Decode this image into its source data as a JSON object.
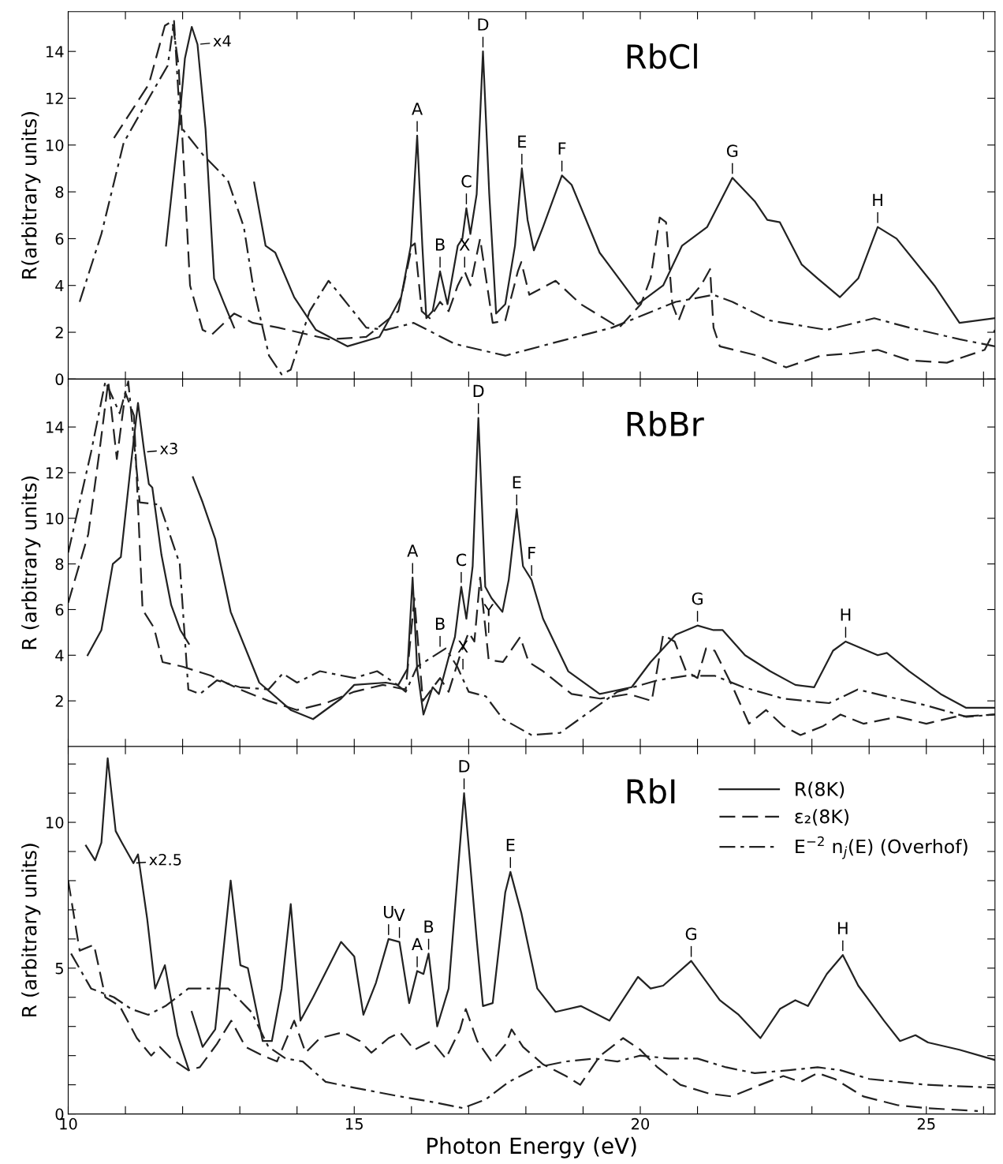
{
  "chart_data": [
    {
      "type": "line",
      "title": "RbCl",
      "ylabel": "R(arbitrary units)",
      "xlim": [
        10,
        26.2
      ],
      "ylim": [
        0,
        15.7
      ],
      "tick_labels": "y",
      "xticks": [
        {
          "value": 10,
          "label": null
        },
        {
          "value": 11,
          "label": null
        },
        {
          "value": 12,
          "label": null
        },
        {
          "value": 13,
          "label": null
        },
        {
          "value": 14,
          "label": null
        },
        {
          "value": 15,
          "label": null
        },
        {
          "value": 16,
          "label": null
        },
        {
          "value": 17,
          "label": null
        },
        {
          "value": 18,
          "label": null
        },
        {
          "value": 19,
          "label": null
        },
        {
          "value": 20,
          "label": null
        },
        {
          "value": 21,
          "label": null
        },
        {
          "value": 22,
          "label": null
        },
        {
          "value": 23,
          "label": null
        },
        {
          "value": 24,
          "label": null
        },
        {
          "value": 25,
          "label": null
        },
        {
          "value": 26,
          "label": null
        }
      ],
      "yticks": [
        0,
        2,
        4,
        6,
        8,
        10,
        12,
        14
      ],
      "series": [
        {
          "color": "#222222",
          "line_style": "solid",
          "x": [
            11.71,
            11.93,
            12.04,
            12.16,
            12.26,
            12.4,
            12.55,
            12.73,
            12.9,
            13.1,
            13.25,
            13.45,
            13.62,
            13.95,
            14.33,
            14.88,
            15.44,
            15.82,
            15.99,
            16.1,
            16.19,
            16.26,
            16.37,
            16.5,
            16.63,
            16.81,
            16.89,
            16.96,
            17.03,
            17.14,
            17.25,
            17.36,
            17.48,
            17.64,
            17.81,
            17.93,
            18.03,
            18.14,
            18.3,
            18.63,
            18.8,
            19.29,
            19.96,
            20.4,
            20.73,
            21.17,
            21.61,
            22.0,
            22.22,
            22.44,
            22.82,
            23.1,
            23.49,
            23.81,
            24.15,
            24.48,
            25.14,
            25.58,
            26.2
          ],
          "values": [
            5.7,
            10.7,
            13.7,
            15.05,
            14.3,
            10.7,
            4.3,
            3.2,
            2.2,
            null,
            8.4,
            5.7,
            5.4,
            3.5,
            2.1,
            1.4,
            1.8,
            3.5,
            5.7,
            10.4,
            5.7,
            2.6,
            2.9,
            4.6,
            3.2,
            5.7,
            6.0,
            7.3,
            6.2,
            7.9,
            14.0,
            7.9,
            2.8,
            3.2,
            5.7,
            9.0,
            6.8,
            5.5,
            6.5,
            8.7,
            8.3,
            5.4,
            3.2,
            4.0,
            5.7,
            6.5,
            8.6,
            7.6,
            6.8,
            6.7,
            4.9,
            4.3,
            3.5,
            4.3,
            6.5,
            6.0,
            4.0,
            2.4,
            2.6
          ]
        },
        {
          "color": "#222222",
          "line_style": "dashed",
          "x": [
            10.8,
            11.41,
            11.69,
            11.82,
            11.93,
            12.13,
            12.35,
            12.51,
            12.9,
            13.23,
            13.67,
            14.55,
            15.21,
            15.77,
            16.01,
            16.06,
            16.18,
            16.32,
            16.5,
            16.65,
            16.81,
            16.93,
            17.03,
            17.2,
            17.42,
            17.64,
            17.86,
            17.92,
            18.06,
            18.52,
            18.96,
            19.63,
            20.01,
            20.18,
            20.34,
            20.45,
            20.56,
            20.67,
            20.78,
            21.06,
            21.22,
            21.28,
            21.39,
            22.05,
            22.55,
            23.15,
            23.7,
            24.15,
            24.7,
            25.36,
            26.02,
            26.2
          ],
          "values": [
            10.3,
            12.6,
            15.1,
            15.3,
            13.4,
            4.0,
            2.1,
            1.9,
            2.8,
            2.4,
            2.2,
            1.7,
            1.8,
            2.9,
            5.7,
            5.8,
            2.9,
            2.6,
            3.3,
            2.9,
            4.0,
            4.6,
            4.0,
            6.0,
            2.4,
            2.5,
            4.6,
            5.0,
            3.6,
            4.2,
            3.2,
            2.2,
            3.2,
            4.3,
            6.9,
            6.7,
            3.2,
            2.5,
            3.2,
            4.0,
            4.7,
            2.2,
            1.4,
            1.0,
            0.5,
            1.0,
            1.1,
            1.25,
            0.8,
            0.7,
            1.25,
            2.1
          ]
        },
        {
          "color": "#222222",
          "line_style": "dashdot",
          "x": [
            10.2,
            10.58,
            10.97,
            11.41,
            11.74,
            11.85,
            11.96,
            12.35,
            12.79,
            13.07,
            13.23,
            13.51,
            13.73,
            13.89,
            14.22,
            14.55,
            14.72,
            15.21,
            15.55,
            16.04,
            16.76,
            17.64,
            18.41,
            19.51,
            20.62,
            21.28,
            21.61,
            22.27,
            23.26,
            24.09,
            24.7,
            25.58,
            26.2
          ],
          "values": [
            3.3,
            6.2,
            10.1,
            12.0,
            13.4,
            15.3,
            10.8,
            9.6,
            8.5,
            6.5,
            4.0,
            1.0,
            0.2,
            0.4,
            2.9,
            4.2,
            3.7,
            2.2,
            2.1,
            2.4,
            1.5,
            1.0,
            1.5,
            2.2,
            3.3,
            3.6,
            3.3,
            2.5,
            2.1,
            2.6,
            2.2,
            1.7,
            1.4
          ]
        }
      ],
      "annotations": [
        {
          "text": "x4",
          "x": 12.26,
          "y": 14.3
        },
        {
          "text": "A",
          "x": 16.1,
          "y": 10.4
        },
        {
          "text": "B",
          "x": 16.5,
          "y": 4.6
        },
        {
          "text": "X",
          "x": 16.93,
          "y": 4.6
        },
        {
          "text": "C",
          "x": 16.96,
          "y": 7.3
        },
        {
          "text": "D",
          "x": 17.25,
          "y": 14.0
        },
        {
          "text": "E",
          "x": 17.93,
          "y": 9.0
        },
        {
          "text": "F",
          "x": 18.63,
          "y": 8.7
        },
        {
          "text": "G",
          "x": 21.61,
          "y": 8.6
        },
        {
          "text": "H",
          "x": 24.15,
          "y": 6.5
        }
      ]
    },
    {
      "type": "line",
      "title": "RbBr",
      "ylabel": "R (arbitrary units)",
      "xlim": [
        10,
        26.2
      ],
      "ylim": [
        0,
        16.1
      ],
      "tick_labels": "y",
      "xticks": [
        {
          "value": 10,
          "label": null
        },
        {
          "value": 11,
          "label": null
        },
        {
          "value": 12,
          "label": null
        },
        {
          "value": 13,
          "label": null
        },
        {
          "value": 14,
          "label": null
        },
        {
          "value": 15,
          "label": null
        },
        {
          "value": 16,
          "label": null
        },
        {
          "value": 17,
          "label": null
        },
        {
          "value": 18,
          "label": null
        },
        {
          "value": 19,
          "label": null
        },
        {
          "value": 20,
          "label": null
        },
        {
          "value": 21,
          "label": null
        },
        {
          "value": 22,
          "label": null
        },
        {
          "value": 23,
          "label": null
        },
        {
          "value": 24,
          "label": null
        },
        {
          "value": 25,
          "label": null
        },
        {
          "value": 26,
          "label": null
        }
      ],
      "yticks": [
        2,
        4,
        6,
        8,
        10,
        12,
        14
      ],
      "series": [
        {
          "color": "#222222",
          "line_style": "solid",
          "x": [
            10.34,
            10.58,
            10.78,
            10.92,
            11.08,
            11.22,
            11.33,
            11.41,
            11.47,
            11.63,
            11.8,
            11.96,
            12.11,
            12.15,
            12.18,
            12.35,
            12.57,
            12.84,
            13.34,
            13.89,
            14.28,
            14.77,
            15.0,
            15.55,
            15.77,
            15.93,
            16.02,
            16.1,
            16.21,
            16.37,
            16.48,
            16.65,
            16.76,
            16.87,
            16.96,
            17.07,
            17.17,
            17.29,
            17.4,
            17.59,
            17.7,
            17.84,
            17.95,
            18.1,
            18.3,
            18.74,
            19.29,
            19.85,
            20.18,
            20.62,
            21.0,
            21.28,
            21.44,
            21.83,
            22.27,
            22.71,
            23.04,
            23.37,
            23.59,
            24.15,
            24.31,
            24.7,
            25.25,
            25.69,
            26.2
          ],
          "values": [
            4.0,
            5.1,
            8.0,
            8.3,
            12.0,
            15.05,
            12.9,
            11.5,
            11.35,
            8.4,
            6.2,
            5.1,
            4.5,
            null,
            11.8,
            10.7,
            9.1,
            5.9,
            2.8,
            1.6,
            1.2,
            2.1,
            2.7,
            2.8,
            2.7,
            3.4,
            7.4,
            3.4,
            1.4,
            2.6,
            2.3,
            3.9,
            4.8,
            7.0,
            5.6,
            7.9,
            14.4,
            7.0,
            6.5,
            5.9,
            7.3,
            10.4,
            7.9,
            7.3,
            5.6,
            3.3,
            2.3,
            2.6,
            3.7,
            4.9,
            5.3,
            5.1,
            5.1,
            4.0,
            3.3,
            2.7,
            2.6,
            4.2,
            4.6,
            4.0,
            4.1,
            3.3,
            2.3,
            1.7,
            1.7
          ]
        },
        {
          "color": "#222222",
          "line_style": "dashed",
          "x": [
            10.0,
            10.35,
            10.55,
            10.7,
            10.85,
            11.0,
            11.15,
            11.3,
            11.5,
            11.65,
            12.0,
            12.5,
            13.0,
            13.5,
            14.0,
            14.5,
            15.0,
            15.5,
            15.9,
            16.05,
            16.2,
            16.5,
            16.65,
            16.85,
            17.0,
            17.1,
            17.2,
            17.35,
            17.6,
            17.9,
            18.05,
            18.3,
            18.8,
            19.3,
            19.8,
            20.2,
            20.4,
            20.6,
            20.8,
            21.0,
            21.15,
            21.3,
            21.6,
            21.9,
            22.2,
            22.5,
            22.8,
            23.2,
            23.5,
            23.9,
            24.5,
            25.0,
            25.5,
            26.2
          ],
          "values": [
            6.3,
            9.3,
            13.0,
            16.0,
            12.6,
            15.5,
            14.5,
            6.0,
            5.2,
            3.7,
            3.5,
            3.1,
            2.5,
            2.0,
            1.6,
            1.9,
            2.4,
            2.7,
            2.5,
            6.5,
            2.0,
            3.0,
            2.4,
            4.0,
            5.0,
            4.6,
            7.4,
            3.8,
            3.7,
            4.8,
            3.7,
            3.3,
            2.3,
            2.1,
            2.3,
            2.0,
            4.9,
            4.6,
            3.3,
            3.0,
            4.3,
            4.2,
            2.7,
            1.0,
            1.6,
            0.9,
            0.5,
            0.9,
            1.4,
            1.0,
            1.3,
            1.0,
            1.3,
            1.4
          ]
        },
        {
          "color": "#222222",
          "line_style": "dashdot",
          "x": [
            10.0,
            10.4,
            10.65,
            10.9,
            11.05,
            11.25,
            11.6,
            11.95,
            12.1,
            12.3,
            12.6,
            13.0,
            13.5,
            13.75,
            14.0,
            14.4,
            15.0,
            15.4,
            15.7,
            15.9,
            16.1,
            16.6,
            16.8,
            17.0,
            17.3,
            17.6,
            18.1,
            18.6,
            19.1,
            19.6,
            20.3,
            20.8,
            21.3,
            21.8,
            22.5,
            23.3,
            23.8,
            24.3,
            25.0,
            25.7,
            26.2
          ],
          "values": [
            8.5,
            12.9,
            16.0,
            14.6,
            16.0,
            10.7,
            10.6,
            8.0,
            2.5,
            2.3,
            2.9,
            2.6,
            2.5,
            3.2,
            2.8,
            3.3,
            3.0,
            3.3,
            2.8,
            2.4,
            3.5,
            4.3,
            3.5,
            2.4,
            2.2,
            1.2,
            0.5,
            0.6,
            1.5,
            2.4,
            2.9,
            3.1,
            3.1,
            2.6,
            2.1,
            1.9,
            2.5,
            2.2,
            1.8,
            1.3,
            1.4
          ]
        }
      ],
      "annotations": [
        {
          "text": "x3",
          "x": 11.33,
          "y": 12.9
        },
        {
          "text": "A",
          "x": 16.02,
          "y": 7.4
        },
        {
          "text": "B",
          "x": 16.5,
          "y": 4.2
        },
        {
          "text": "X",
          "x": 16.9,
          "y": 3.2
        },
        {
          "text": "C",
          "x": 16.87,
          "y": 7.0
        },
        {
          "text": "Y",
          "x": 17.35,
          "y": 4.8
        },
        {
          "text": "D",
          "x": 17.17,
          "y": 14.4
        },
        {
          "text": "E",
          "x": 17.84,
          "y": 10.4
        },
        {
          "text": "F",
          "x": 18.1,
          "y": 7.3
        },
        {
          "text": "G",
          "x": 21.0,
          "y": 5.3
        },
        {
          "text": "H",
          "x": 23.59,
          "y": 4.6
        }
      ]
    },
    {
      "type": "line",
      "title": "RbI",
      "xlabel": "Photon Energy (eV)",
      "ylabel": "R (arbitrary units)",
      "xlim": [
        10,
        26.2
      ],
      "ylim": [
        0,
        12.6
      ],
      "legend": "top right",
      "xticks": [
        10,
        {
          "value": 11,
          "label": null
        },
        {
          "value": 12,
          "label": null
        },
        {
          "value": 13,
          "label": null
        },
        {
          "value": 14,
          "label": null
        },
        15,
        {
          "value": 16,
          "label": null
        },
        {
          "value": 17,
          "label": null
        },
        {
          "value": 18,
          "label": null
        },
        {
          "value": 19,
          "label": null
        },
        20,
        {
          "value": 21,
          "label": null
        },
        {
          "value": 22,
          "label": null
        },
        {
          "value": 23,
          "label": null
        },
        {
          "value": 24,
          "label": null
        },
        25,
        {
          "value": 26,
          "label": null
        }
      ],
      "yticks": [
        0,
        {
          "value": 1,
          "label": null
        },
        {
          "value": 2,
          "label": null
        },
        {
          "value": 3,
          "label": null
        },
        {
          "value": 4,
          "label": null
        },
        5,
        {
          "value": 6,
          "label": null
        },
        {
          "value": 7,
          "label": null
        },
        {
          "value": 8,
          "label": null
        },
        {
          "value": 9,
          "label": null
        },
        10,
        {
          "value": 11,
          "label": null
        },
        {
          "value": 12,
          "label": null
        }
      ],
      "series": [
        {
          "name": "R(8K)",
          "color": "#222222",
          "line_style": "solid",
          "x": [
            10.31,
            10.47,
            10.58,
            10.69,
            10.83,
            10.94,
            11.14,
            11.22,
            11.38,
            11.52,
            11.69,
            11.91,
            12.11,
            12.14,
            12.16,
            12.35,
            12.57,
            12.84,
            13.01,
            13.14,
            13.4,
            13.56,
            13.73,
            13.89,
            14.06,
            14.28,
            14.77,
            15.0,
            15.16,
            15.38,
            15.6,
            15.79,
            15.96,
            16.1,
            16.21,
            16.3,
            16.45,
            16.65,
            16.92,
            17.14,
            17.25,
            17.42,
            17.64,
            17.73,
            17.92,
            18.2,
            18.52,
            18.96,
            19.46,
            19.96,
            20.18,
            20.4,
            20.89,
            21.39,
            21.72,
            22.1,
            22.44,
            22.71,
            22.93,
            23.26,
            23.54,
            23.81,
            24.26,
            24.54,
            24.81,
            25.03,
            25.58,
            26.2
          ],
          "values": [
            9.2,
            8.7,
            9.3,
            12.2,
            9.7,
            9.3,
            8.6,
            8.9,
            6.7,
            4.3,
            5.1,
            2.7,
            1.5,
            null,
            3.5,
            2.3,
            2.9,
            8.0,
            5.1,
            5.0,
            2.5,
            2.5,
            4.3,
            7.2,
            3.2,
            4.0,
            5.9,
            5.4,
            3.4,
            4.5,
            6.0,
            5.9,
            3.8,
            4.9,
            4.8,
            5.5,
            3.0,
            4.3,
            11.0,
            6.0,
            3.7,
            3.8,
            7.6,
            8.3,
            6.9,
            4.3,
            3.5,
            3.7,
            3.2,
            4.7,
            4.3,
            4.4,
            5.25,
            3.9,
            3.4,
            2.6,
            3.6,
            3.9,
            3.7,
            4.8,
            5.45,
            4.4,
            3.2,
            2.5,
            2.7,
            2.45,
            2.2,
            1.85
          ]
        },
        {
          "name": "ε₂(8K)",
          "color": "#222222",
          "line_style": "dashed",
          "x": [
            10.0,
            10.2,
            10.45,
            10.65,
            10.9,
            11.2,
            11.45,
            11.6,
            11.8,
            12.1,
            12.3,
            12.6,
            12.85,
            13.1,
            13.4,
            13.65,
            13.95,
            14.15,
            14.4,
            14.8,
            15.1,
            15.3,
            15.6,
            15.8,
            16.05,
            16.35,
            16.6,
            16.85,
            16.95,
            17.15,
            17.4,
            17.65,
            17.75,
            17.95,
            18.3,
            18.7,
            18.95,
            19.3,
            19.7,
            20.0,
            20.3,
            20.7,
            21.2,
            21.6,
            22.1,
            22.5,
            22.8,
            23.1,
            23.4,
            23.9,
            24.5,
            25.0,
            25.9
          ],
          "values": [
            8.0,
            5.6,
            5.8,
            4.0,
            3.7,
            2.6,
            2.0,
            2.3,
            1.9,
            1.5,
            1.6,
            2.4,
            3.2,
            2.3,
            2.0,
            1.8,
            3.2,
            2.1,
            2.6,
            2.8,
            2.5,
            2.1,
            2.6,
            2.8,
            2.2,
            2.5,
            1.9,
            2.9,
            3.6,
            2.5,
            1.8,
            2.4,
            2.9,
            2.3,
            1.7,
            1.3,
            1.0,
            2.0,
            2.6,
            2.2,
            1.6,
            1.0,
            0.7,
            0.6,
            1.0,
            1.3,
            1.1,
            1.4,
            1.2,
            0.6,
            0.3,
            0.2,
            0.1
          ]
        },
        {
          "name": "E$^{−2}$ n$_{j}$(E) (Overhof)",
          "color": "#222222",
          "line_style": "dashdot",
          "x": [
            10.05,
            10.4,
            10.8,
            11.1,
            11.4,
            11.7,
            12.1,
            12.5,
            12.8,
            13.2,
            13.5,
            13.8,
            14.1,
            14.5,
            15.0,
            15.8,
            16.4,
            16.9,
            17.3,
            17.7,
            18.2,
            18.7,
            19.2,
            19.6,
            20.0,
            20.5,
            21.0,
            21.5,
            22.0,
            22.6,
            23.1,
            23.5,
            24.0,
            25.0,
            26.2
          ],
          "values": [
            5.5,
            4.3,
            4.0,
            3.6,
            3.4,
            3.7,
            4.3,
            4.3,
            4.3,
            3.5,
            2.3,
            1.9,
            1.8,
            1.1,
            0.9,
            0.6,
            0.4,
            0.2,
            0.5,
            1.1,
            1.6,
            1.8,
            1.9,
            1.8,
            2.0,
            1.9,
            1.9,
            1.6,
            1.4,
            1.5,
            1.6,
            1.5,
            1.2,
            1.0,
            0.9
          ]
        }
      ],
      "annotations": [
        {
          "text": "x2.5",
          "x": 11.14,
          "y": 8.6
        },
        {
          "text": "U",
          "x": 15.6,
          "y": 6.0
        },
        {
          "text": "V",
          "x": 15.79,
          "y": 5.9
        },
        {
          "text": "A",
          "x": 16.1,
          "y": 4.9
        },
        {
          "text": "B",
          "x": 16.3,
          "y": 5.5
        },
        {
          "text": "D",
          "x": 16.92,
          "y": 11.0
        },
        {
          "text": "E",
          "x": 17.73,
          "y": 8.3
        },
        {
          "text": "G",
          "x": 20.89,
          "y": 5.25
        },
        {
          "text": "H",
          "x": 23.54,
          "y": 5.45
        }
      ]
    }
  ]
}
